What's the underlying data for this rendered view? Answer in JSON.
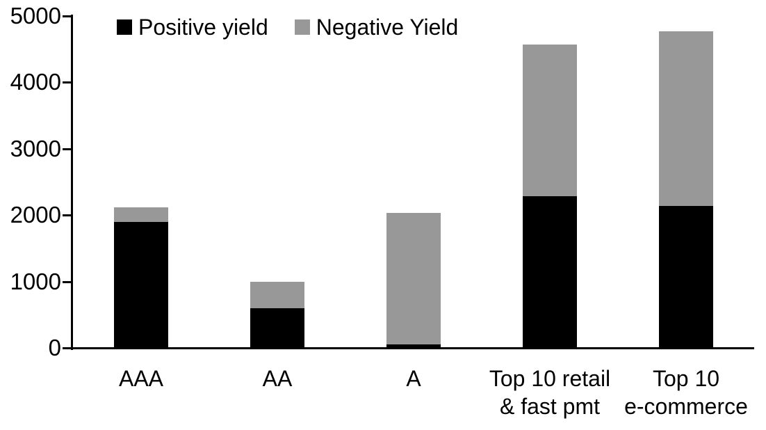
{
  "chart_data": {
    "type": "bar",
    "stacked": true,
    "title": "",
    "categories": [
      [
        "AAA"
      ],
      [
        "AA"
      ],
      [
        "A"
      ],
      [
        "Top 10 retail",
        "& fast pmt"
      ],
      [
        "Top 10",
        "e-commerce"
      ]
    ],
    "series": [
      {
        "name": "Positive yield",
        "key": "positive-yield",
        "color": "#000000",
        "values": [
          1900,
          600,
          50,
          2280,
          2140
        ]
      },
      {
        "name": "Negative Yield",
        "key": "negative-yield",
        "color": "#989898",
        "values": [
          220,
          400,
          1980,
          2290,
          2630
        ]
      }
    ],
    "totals": [
      2120,
      1000,
      2030,
      4570,
      4770
    ],
    "ylim": [
      0,
      5000
    ],
    "yticks": [
      0,
      1000,
      2000,
      3000,
      4000,
      5000
    ],
    "xlabel": "",
    "ylabel": "",
    "grid": false,
    "legend_position": "top-left",
    "axis_color": "#000000",
    "background_color": "#ffffff"
  }
}
